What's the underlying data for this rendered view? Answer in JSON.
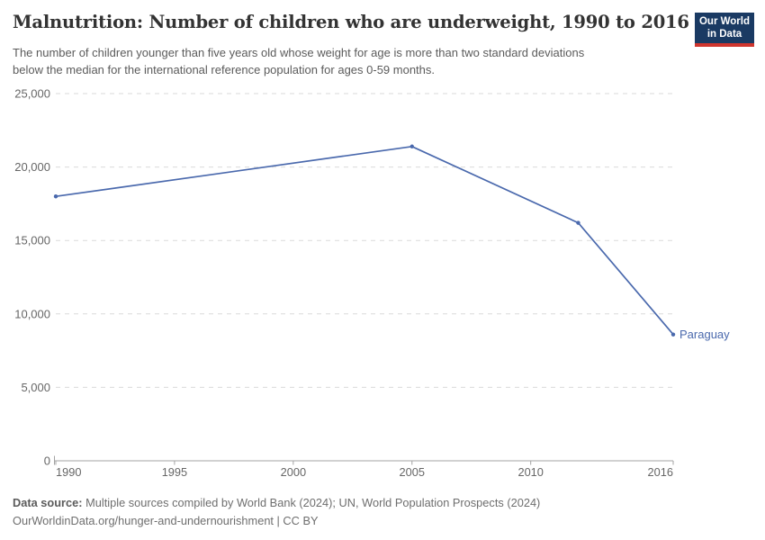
{
  "header": {
    "title": "Malnutrition: Number of children who are underweight, 1990 to 2016",
    "subtitle_lines": [
      "The number of children younger than five years old whose weight for age is more than two standard deviations",
      "below the median for the international reference population for ages 0-59 months."
    ]
  },
  "logo": {
    "line1": "Our World",
    "line2": "in Data",
    "bg_color": "#1a3a63",
    "stripe_color": "#cf352e"
  },
  "footer": {
    "source_label": "Data source:",
    "source_text": " Multiple sources compiled by World Bank (2024); UN, World Population Prospects (2024)",
    "attribution": "OurWorldinData.org/hunger-and-undernourishment | CC BY"
  },
  "chart_data": {
    "type": "line",
    "title": "Malnutrition: Number of children who are underweight, 1990 to 2016",
    "xlabel": "",
    "ylabel": "",
    "xlim": [
      1990,
      2016
    ],
    "ylim": [
      0,
      25000
    ],
    "x_ticks": [
      1990,
      1995,
      2000,
      2005,
      2010,
      2016
    ],
    "y_ticks": [
      0,
      5000,
      10000,
      15000,
      20000,
      25000
    ],
    "grid": "horizontal-dashed",
    "legend": "end-of-line-label",
    "series": [
      {
        "name": "Paraguay",
        "color": "#4a69ad",
        "points": [
          [
            1990,
            18000
          ],
          [
            2005,
            21400
          ],
          [
            2012,
            16200
          ],
          [
            2016,
            8600
          ]
        ]
      }
    ],
    "colors": {
      "grid": "#dadada",
      "axis": "#a3a3a3",
      "tick_text": "#666666"
    }
  }
}
